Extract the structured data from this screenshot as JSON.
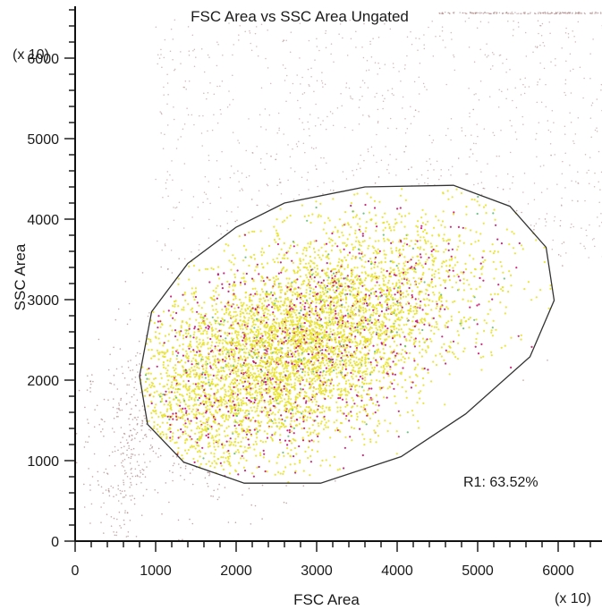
{
  "chart_data": {
    "type": "scatter",
    "title": "FSC Area vs SSC Area  Ungated",
    "xlabel": "FSC Area",
    "ylabel": "SSC Area",
    "x_multiplier": "(x 10)",
    "y_multiplier": "(x 10)",
    "xlim": [
      0,
      6600
    ],
    "ylim": [
      0,
      6600
    ],
    "x_ticks": [
      0,
      1000,
      2000,
      3000,
      4000,
      5000,
      6000
    ],
    "y_ticks": [
      0,
      1000,
      2000,
      3000,
      4000,
      5000,
      6000
    ],
    "x_tick_labels": [
      "0",
      "1000",
      "2000",
      "3000",
      "4000",
      "5000",
      "6000"
    ],
    "y_tick_labels": [
      "0",
      "1000",
      "2000",
      "3000",
      "4000",
      "5000",
      "6000"
    ],
    "grid": false,
    "colors": {
      "outside_gate": "#b08a8a",
      "inside_yellow": "#e8e22a",
      "inside_magenta": "#c8146e",
      "inside_green": "#5fbf7a",
      "gate_line": "#333333",
      "axis": "#111111"
    },
    "point_density": {
      "description_of_population": "main cell population centred near FSC 2500, SSC 2300",
      "center": [
        2700,
        2400
      ],
      "spread": [
        1100,
        750
      ],
      "inside_gate_percent": 63.52
    },
    "gates": [
      {
        "name": "R1",
        "label": "R1: 63.52%",
        "percent": 63.52,
        "polygon": [
          [
            900,
            1450
          ],
          [
            800,
            2050
          ],
          [
            950,
            2850
          ],
          [
            1400,
            3450
          ],
          [
            2000,
            3900
          ],
          [
            2600,
            4200
          ],
          [
            3600,
            4400
          ],
          [
            4700,
            4420
          ],
          [
            5400,
            4160
          ],
          [
            5850,
            3650
          ],
          [
            5950,
            2990
          ],
          [
            5650,
            2290
          ],
          [
            4850,
            1580
          ],
          [
            4050,
            1050
          ],
          [
            3050,
            720
          ],
          [
            2100,
            720
          ],
          [
            1350,
            980
          ]
        ]
      }
    ]
  }
}
